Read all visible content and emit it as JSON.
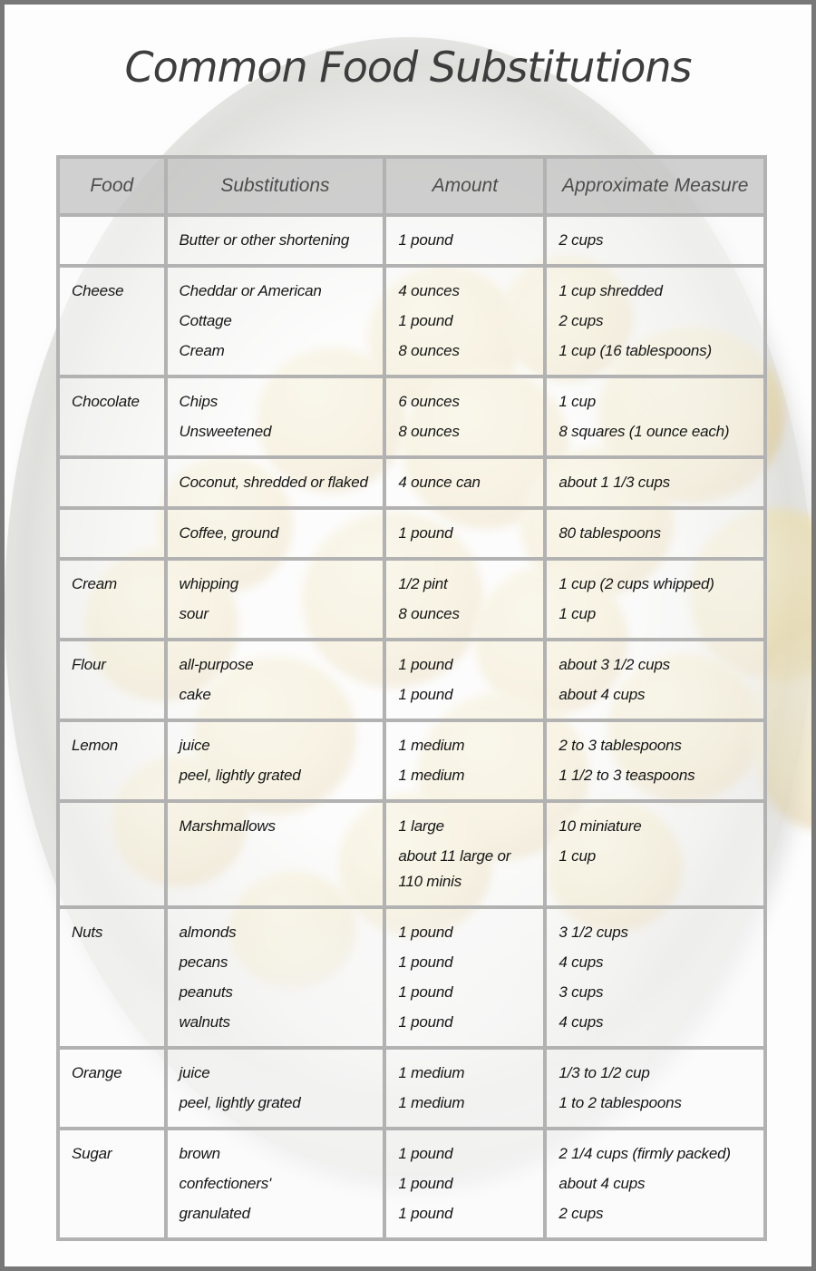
{
  "page": {
    "title": "Common Food Substitutions"
  },
  "table": {
    "headers": [
      "Food",
      "Substitutions",
      "Amount",
      "Approximate Measure"
    ],
    "rows": [
      {
        "food": "",
        "substitutions": [
          "Butter or other shortening"
        ],
        "amounts": [
          "1 pound"
        ],
        "measures": [
          "2 cups"
        ]
      },
      {
        "food": "Cheese",
        "substitutions": [
          "Cheddar or American",
          "Cottage",
          "Cream"
        ],
        "amounts": [
          "4 ounces",
          "1 pound",
          "8 ounces"
        ],
        "measures": [
          "1 cup shredded",
          "2 cups",
          "1 cup (16 tablespoons)"
        ]
      },
      {
        "food": "Chocolate",
        "substitutions": [
          "Chips",
          "Unsweetened"
        ],
        "amounts": [
          "6 ounces",
          "8 ounces"
        ],
        "measures": [
          "1 cup",
          "8 squares (1 ounce each)"
        ]
      },
      {
        "food": "",
        "substitutions": [
          "Coconut, shredded or flaked"
        ],
        "amounts": [
          "4 ounce can"
        ],
        "measures": [
          "about 1 1/3 cups"
        ]
      },
      {
        "food": "",
        "substitutions": [
          "Coffee, ground"
        ],
        "amounts": [
          "1 pound"
        ],
        "measures": [
          "80 tablespoons"
        ]
      },
      {
        "food": "Cream",
        "substitutions": [
          "whipping",
          "sour"
        ],
        "amounts": [
          "1/2 pint",
          "8 ounces"
        ],
        "measures": [
          "1 cup (2 cups whipped)",
          "1 cup"
        ]
      },
      {
        "food": "Flour",
        "substitutions": [
          "all-purpose",
          "cake"
        ],
        "amounts": [
          "1 pound",
          "1 pound"
        ],
        "measures": [
          "about 3 1/2 cups",
          "about 4 cups"
        ]
      },
      {
        "food": "Lemon",
        "substitutions": [
          "juice",
          "peel, lightly grated"
        ],
        "amounts": [
          "1 medium",
          "1 medium"
        ],
        "measures": [
          "2 to 3 tablespoons",
          "1 1/2 to 3 teaspoons"
        ]
      },
      {
        "food": "",
        "substitutions": [
          "Marshmallows"
        ],
        "amounts": [
          "1 large",
          "about 11 large or 110 minis"
        ],
        "measures": [
          "10 miniature",
          "1 cup"
        ]
      },
      {
        "food": "Nuts",
        "substitutions": [
          "almonds",
          "pecans",
          "peanuts",
          "walnuts"
        ],
        "amounts": [
          "1 pound",
          "1 pound",
          "1 pound",
          "1 pound"
        ],
        "measures": [
          "3 1/2 cups",
          "4 cups",
          "3 cups",
          "4 cups"
        ]
      },
      {
        "food": "Orange",
        "substitutions": [
          "juice",
          "peel, lightly grated"
        ],
        "amounts": [
          "1 medium",
          "1 medium"
        ],
        "measures": [
          "1/3 to 1/2 cup",
          "1 to 2 tablespoons"
        ]
      },
      {
        "food": "Sugar",
        "substitutions": [
          "brown",
          "confectioners'",
          "granulated"
        ],
        "amounts": [
          "1 pound",
          "1 pound",
          "1 pound"
        ],
        "measures": [
          "2 1/4 cups (firmly packed)",
          "about 4 cups",
          "2 cups"
        ]
      }
    ]
  },
  "colors": {
    "frame": "#787878",
    "grid_line": "#b2b2b2",
    "header_bg": "#d0d0d0",
    "header_text": "#4d4d4d",
    "body_text": "#161616",
    "title_text": "#3d3d3d",
    "lemon": "#ecd995",
    "bowl_gray": "#e4e4e2",
    "page_bg": "#fdfdfd"
  }
}
